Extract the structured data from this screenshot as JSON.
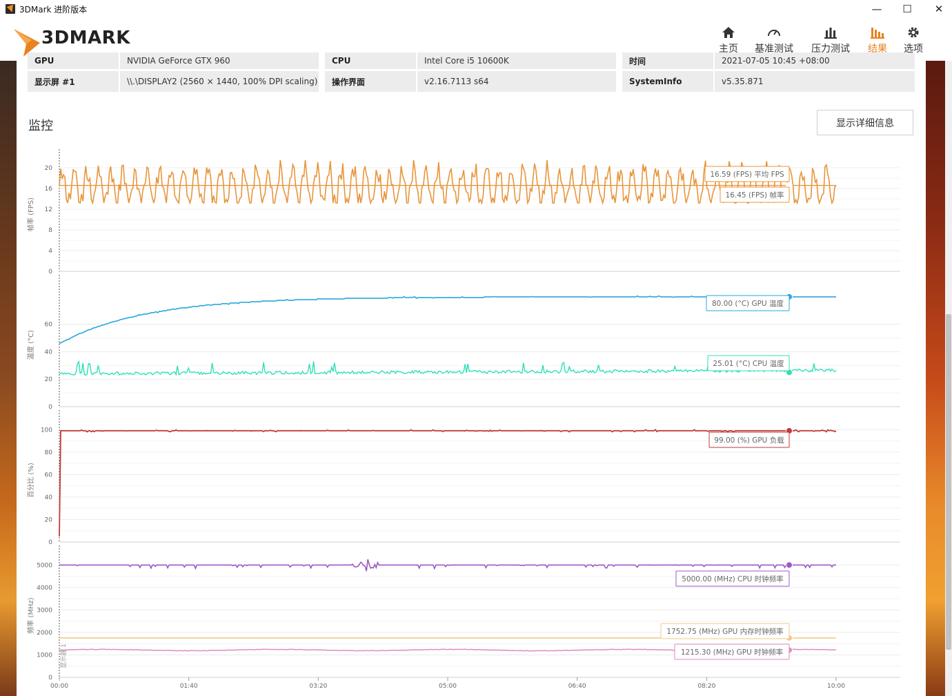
{
  "window": {
    "title": "3DMark 进阶版本",
    "controls": {
      "minimize": "—",
      "maximize": "☐",
      "close": "✕"
    }
  },
  "header": {
    "logo_text": "3DMARK",
    "nav": [
      {
        "label": "主页",
        "icon": "home-icon"
      },
      {
        "label": "基准测试",
        "icon": "gauge-icon"
      },
      {
        "label": "压力测试",
        "icon": "stress-chart-icon"
      },
      {
        "label": "结果",
        "icon": "results-chart-icon",
        "active": true
      },
      {
        "label": "选项",
        "icon": "gear-icon"
      }
    ]
  },
  "system_info": {
    "row_partial": [
      "GPU",
      "NVIDIA GeForce GTX 960",
      "CPU",
      "Intel Core i5 10600K",
      "时间",
      "2021-07-05 10:45 +08:00"
    ],
    "row": [
      {
        "label": "显示屏 #1",
        "value": "\\\\.\\DISPLAY2 (2560 × 1440, 100% DPI scaling)"
      },
      {
        "label": "操作界面",
        "value": "v2.16.7113 s64"
      },
      {
        "label": "SystemInfo",
        "value": "v5.35.871"
      }
    ]
  },
  "monitor": {
    "title": "监控",
    "detail_button": "显示详细信息",
    "marker_label": "显示器 1"
  },
  "chart_data": [
    {
      "type": "line",
      "ylabel": "帧率 (FPS)",
      "ylim": [
        0,
        22
      ],
      "yticks": [
        0,
        4,
        8,
        12,
        16,
        20
      ],
      "x_ticks": [
        "00:00",
        "01:40",
        "03:20",
        "05:00",
        "06:40",
        "08:20",
        "10:00"
      ],
      "series": [
        {
          "name": "帧率",
          "color": "#e8953a",
          "summary": "16.45 (FPS) 帧率",
          "pattern": "oscillating 13-21",
          "avg": 16.45
        },
        {
          "name": "平均 FPS",
          "color": "#e8953a",
          "summary": "16.59 (FPS) 平均 FPS",
          "constant": 16.59
        }
      ]
    },
    {
      "type": "line",
      "ylabel": "温度 (°C)",
      "ylim": [
        0,
        90
      ],
      "yticks": [
        0,
        20,
        40,
        60
      ],
      "series": [
        {
          "name": "GPU 温度",
          "color": "#2aa7dd",
          "summary": "80.00 (°C) GPU 温度",
          "start": 46,
          "end": 80
        },
        {
          "name": "CPU 温度",
          "color": "#2de0b8",
          "summary": "25.01 (°C) CPU 温度",
          "base": 24
        }
      ]
    },
    {
      "type": "line",
      "ylabel": "百分比 (%)",
      "ylim": [
        0,
        110
      ],
      "yticks": [
        0,
        20,
        40,
        60,
        80,
        100
      ],
      "series": [
        {
          "name": "GPU 负载",
          "color": "#c23a3a",
          "summary": "99.00 (%) GPU 负载",
          "start": 5,
          "level": 99
        }
      ]
    },
    {
      "type": "line",
      "ylabel": "频率 (MHz)",
      "ylim": [
        0,
        5500
      ],
      "yticks": [
        0,
        1000,
        2000,
        3000,
        4000,
        5000
      ],
      "series": [
        {
          "name": "CPU 时钟频率",
          "color": "#9b59c6",
          "summary": "5000.00 (MHz) CPU 时钟频率",
          "level": 5000
        },
        {
          "name": "GPU 内存时钟频率",
          "color": "#f2c98a",
          "summary": "1752.75 (MHz) GPU 内存时钟频率",
          "level": 1752.75
        },
        {
          "name": "GPU 时钟频率",
          "color": "#e08ac0",
          "summary": "1215.30 (MHz) GPU 时钟频率",
          "level": 1215.3
        }
      ]
    }
  ]
}
